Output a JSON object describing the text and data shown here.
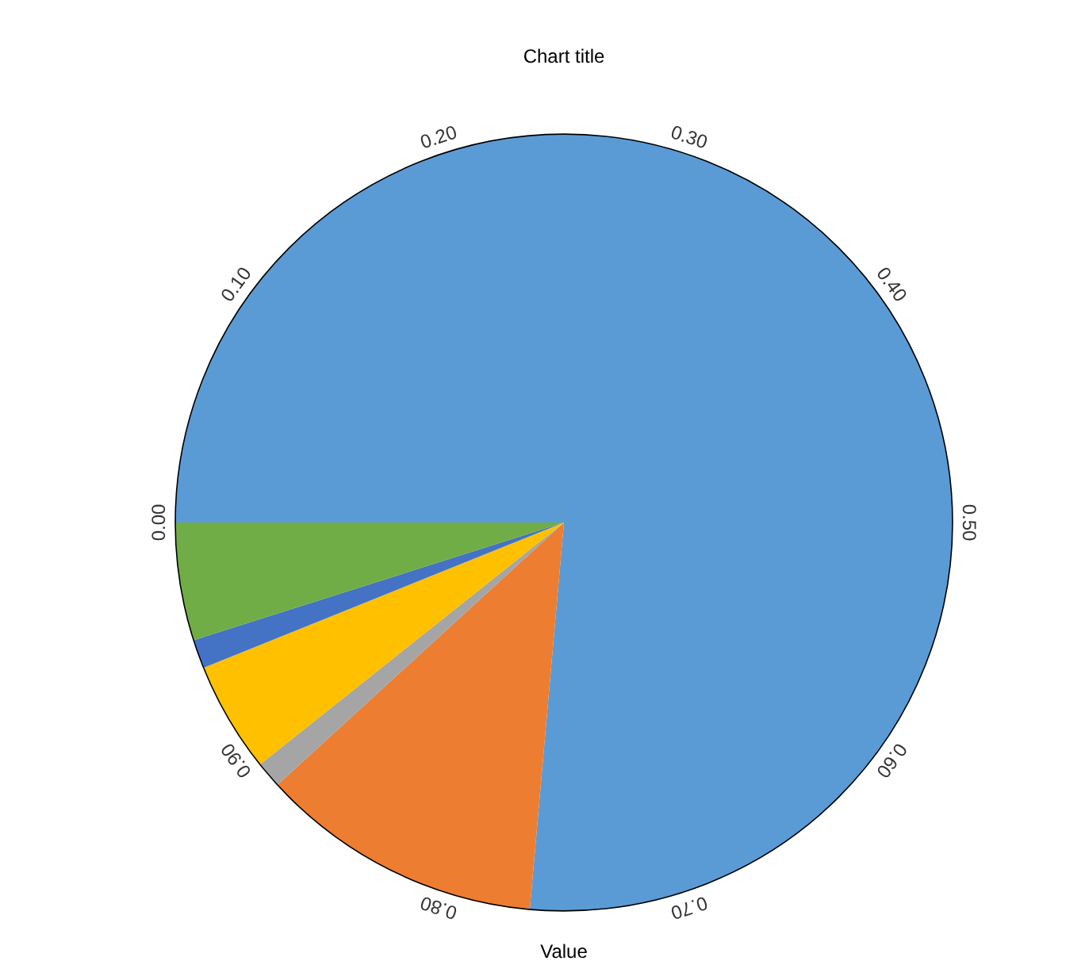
{
  "chart_data": {
    "type": "pie",
    "title": "Chart title",
    "xlabel": "Value",
    "categories": [
      null,
      null,
      null,
      null,
      null,
      null
    ],
    "values": [
      0.764,
      0.118,
      0.011,
      0.046,
      0.012,
      0.049
    ],
    "colors": [
      "#5b9bd5",
      "#ed7d31",
      "#a5a5a5",
      "#ffc000",
      "#4472c4",
      "#70ad47"
    ],
    "annotations": [
      "0.00",
      "0.10",
      "0.20",
      "0.30",
      "0.40",
      "0.50",
      "0.60",
      "0.70",
      "0.80",
      "0.90"
    ]
  }
}
